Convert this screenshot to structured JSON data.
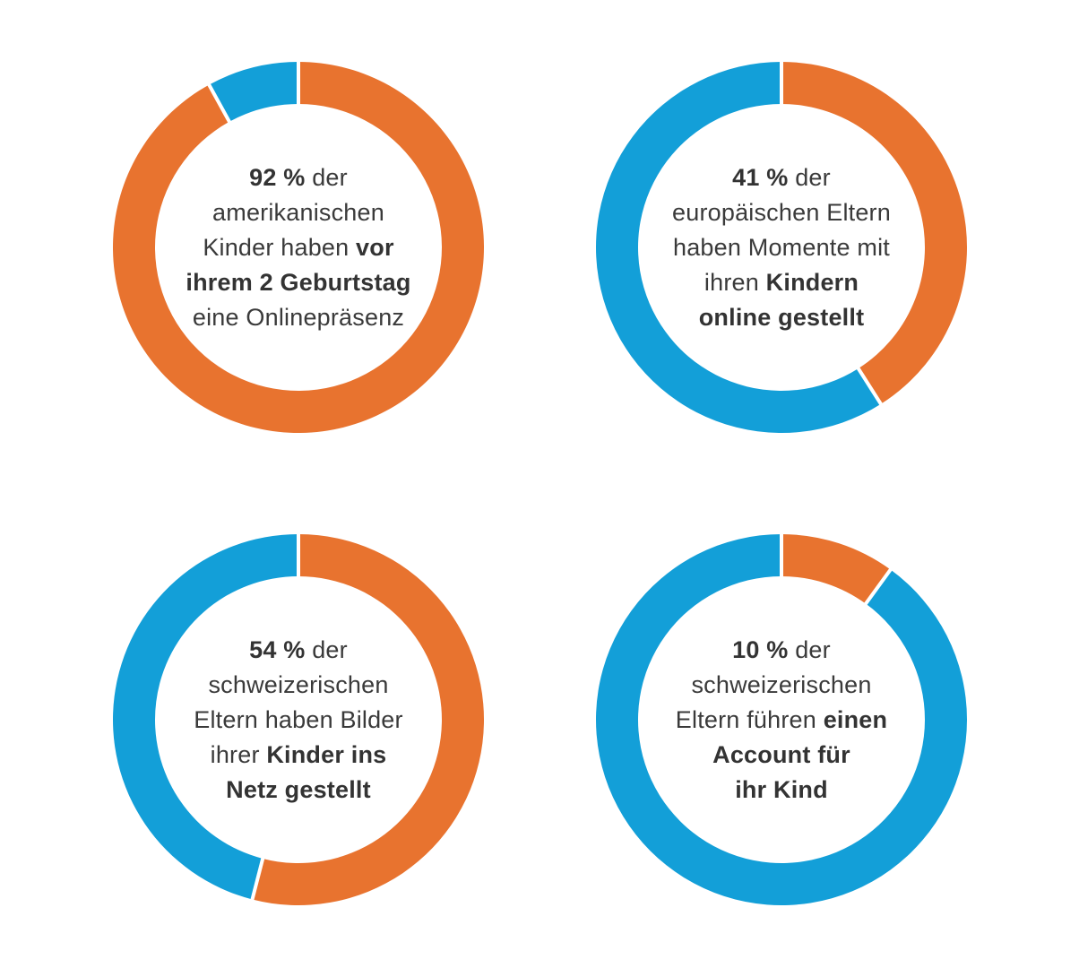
{
  "colors": {
    "orange": "#E8732F",
    "blue": "#139FD8",
    "separator": "#ffffff",
    "text": "#3a3a3a"
  },
  "chart_data": [
    {
      "type": "pie",
      "variant": "donut",
      "slices": [
        {
          "value": 92,
          "color": "#E8732F"
        },
        {
          "value": 8,
          "color": "#139FD8"
        }
      ],
      "annotation_lines": [
        [
          {
            "text": "92 %",
            "bold": true
          },
          {
            "text": " der",
            "bold": false
          }
        ],
        [
          {
            "text": "amerikanischen",
            "bold": false
          }
        ],
        [
          {
            "text": "Kinder haben ",
            "bold": false
          },
          {
            "text": "vor",
            "bold": true
          }
        ],
        [
          {
            "text": "ihrem 2 Geburtstag",
            "bold": true
          }
        ],
        [
          {
            "text": "eine Onlinepräsenz",
            "bold": false
          }
        ]
      ]
    },
    {
      "type": "pie",
      "variant": "donut",
      "slices": [
        {
          "value": 41,
          "color": "#E8732F"
        },
        {
          "value": 59,
          "color": "#139FD8"
        }
      ],
      "annotation_lines": [
        [
          {
            "text": "41 %",
            "bold": true
          },
          {
            "text": " der",
            "bold": false
          }
        ],
        [
          {
            "text": "europäischen Eltern",
            "bold": false
          }
        ],
        [
          {
            "text": "haben Momente mit",
            "bold": false
          }
        ],
        [
          {
            "text": "ihren ",
            "bold": false
          },
          {
            "text": "Kindern",
            "bold": true
          }
        ],
        [
          {
            "text": "online gestellt",
            "bold": true
          }
        ]
      ]
    },
    {
      "type": "pie",
      "variant": "donut",
      "slices": [
        {
          "value": 54,
          "color": "#E8732F"
        },
        {
          "value": 46,
          "color": "#139FD8"
        }
      ],
      "annotation_lines": [
        [
          {
            "text": "54 %",
            "bold": true
          },
          {
            "text": " der",
            "bold": false
          }
        ],
        [
          {
            "text": "schweizerischen",
            "bold": false
          }
        ],
        [
          {
            "text": "Eltern haben Bilder",
            "bold": false
          }
        ],
        [
          {
            "text": "ihrer ",
            "bold": false
          },
          {
            "text": "Kinder ins",
            "bold": true
          }
        ],
        [
          {
            "text": "Netz gestellt",
            "bold": true
          }
        ]
      ]
    },
    {
      "type": "pie",
      "variant": "donut",
      "slices": [
        {
          "value": 10,
          "color": "#E8732F"
        },
        {
          "value": 90,
          "color": "#139FD8"
        }
      ],
      "annotation_lines": [
        [
          {
            "text": "10 %",
            "bold": true
          },
          {
            "text": " der",
            "bold": false
          }
        ],
        [
          {
            "text": "schweizerischen",
            "bold": false
          }
        ],
        [
          {
            "text": "Eltern führen ",
            "bold": false
          },
          {
            "text": "einen",
            "bold": true
          }
        ],
        [
          {
            "text": "Account für",
            "bold": true
          }
        ],
        [
          {
            "text": "ihr Kind",
            "bold": true
          }
        ]
      ]
    }
  ]
}
